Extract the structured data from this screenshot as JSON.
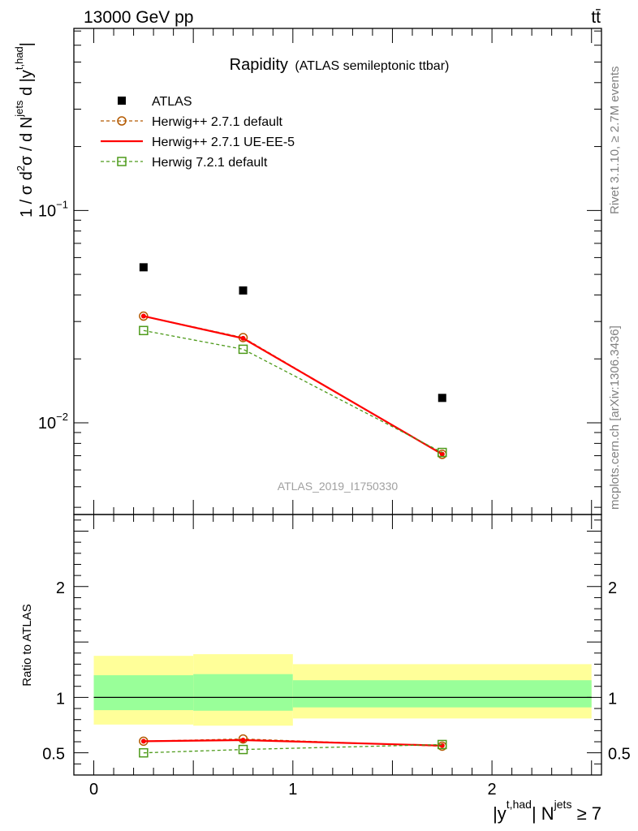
{
  "header": {
    "energy_label": "13000 GeV pp",
    "process_label": "tt̄"
  },
  "side_labels": {
    "rivet": "Rivet 3.1.10, ≥ 2.7M events",
    "mcplots": "mcplots.cern.ch [arXiv:1306.3436]"
  },
  "chart_data": [
    {
      "type": "scatter",
      "title": "Rapidity",
      "subtitle": "(ATLAS semileptonic ttbar)",
      "watermark": "ATLAS_2019_I1750330",
      "ylabel": "1 / σ d²σ / d N^jets d |y^t,had|",
      "yscale": "log",
      "ylim": [
        0.0037,
        0.72
      ],
      "y_tick_labels": [
        "10^-2",
        "10^-1"
      ],
      "xlim": [
        -0.1,
        2.55
      ],
      "legend_position": "top-left",
      "x": [
        0.25,
        0.75,
        1.75
      ],
      "series": [
        {
          "name": "ATLAS",
          "values": [
            0.054,
            0.042,
            0.0131
          ],
          "color": "#000000",
          "marker": "filled-square",
          "line": "none"
        },
        {
          "name": "Herwig++ 2.7.1 default",
          "values": [
            0.0318,
            0.0252,
            0.0071
          ],
          "color": "#b35900",
          "marker": "open-circle",
          "line": "dashed"
        },
        {
          "name": "Herwig++ 2.7.1 UE-EE-5",
          "values": [
            0.0318,
            0.025,
            0.00712
          ],
          "color": "#ff0000",
          "marker": "small-dot",
          "line": "solid"
        },
        {
          "name": "Herwig 7.2.1 default",
          "values": [
            0.0272,
            0.0222,
            0.00725
          ],
          "color": "#4d9a1a",
          "marker": "open-square",
          "line": "dashed"
        }
      ]
    },
    {
      "type": "scatter",
      "ylabel": "Ratio to ATLAS",
      "xlabel": "|y^t,had| N^jets ≥ 7",
      "ylim": [
        0.3,
        2.65
      ],
      "y_ticks": [
        0.5,
        1,
        2
      ],
      "y_tick_labels": [
        "0.5",
        "1",
        "2"
      ],
      "xlim": [
        -0.1,
        2.55
      ],
      "x_ticks": [
        0,
        1,
        2
      ],
      "x_tick_labels": [
        "0",
        "1",
        "2"
      ],
      "bins": [
        [
          0,
          0.5
        ],
        [
          0.5,
          1.0
        ],
        [
          1.0,
          2.5
        ]
      ],
      "band_yellow": [
        [
          0.755,
          1.375
        ],
        [
          0.745,
          1.39
        ],
        [
          0.81,
          1.3
        ]
      ],
      "band_green": [
        [
          0.885,
          1.2
        ],
        [
          0.88,
          1.21
        ],
        [
          0.91,
          1.155
        ]
      ],
      "x": [
        0.25,
        0.75,
        1.75
      ],
      "series": [
        {
          "name": "Herwig++ 2.7.1 default",
          "values": [
            0.605,
            0.625,
            0.56
          ],
          "color": "#b35900",
          "marker": "open-circle",
          "line": "dashed"
        },
        {
          "name": "Herwig++ 2.7.1 UE-EE-5",
          "values": [
            0.605,
            0.615,
            0.565
          ],
          "color": "#ff0000",
          "marker": "small-dot",
          "line": "solid"
        },
        {
          "name": "Herwig 7.2.1 default",
          "values": [
            0.5,
            0.53,
            0.575
          ],
          "color": "#4d9a1a",
          "marker": "open-square",
          "line": "dashed"
        }
      ]
    }
  ]
}
